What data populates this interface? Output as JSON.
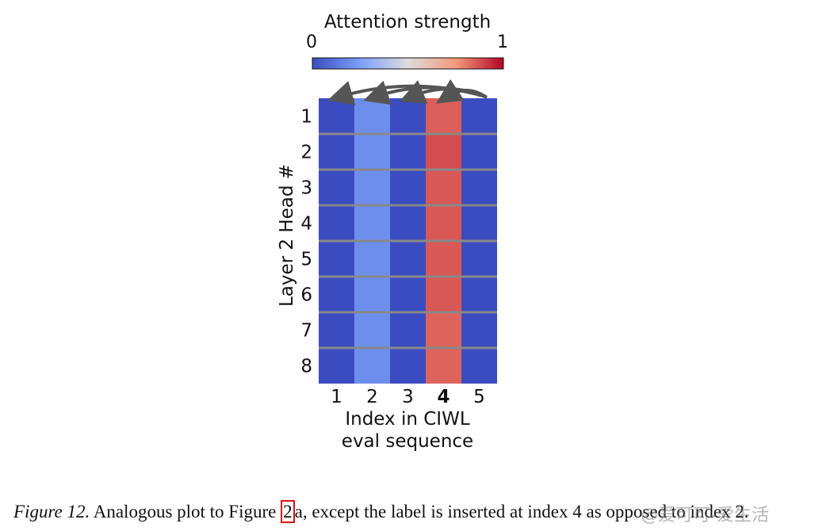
{
  "chart_data": {
    "type": "heatmap",
    "colorbar": {
      "title": "Attention strength",
      "min_label": "0",
      "max_label": "1",
      "range": [
        0,
        1
      ],
      "colormap": "coolwarm"
    },
    "x": {
      "label_line1": "Index in CIWL",
      "label_line2": "eval sequence",
      "ticks": [
        "1",
        "2",
        "3",
        "4",
        "5"
      ],
      "highlight_tick": "4"
    },
    "y": {
      "label": "Layer 2 Head #",
      "ticks": [
        "1",
        "2",
        "3",
        "4",
        "5",
        "6",
        "7",
        "8"
      ]
    },
    "values": [
      [
        0.0,
        0.2,
        0.0,
        0.85,
        0.0
      ],
      [
        0.0,
        0.2,
        0.0,
        0.88,
        0.0
      ],
      [
        0.0,
        0.2,
        0.0,
        0.86,
        0.0
      ],
      [
        0.0,
        0.2,
        0.0,
        0.86,
        0.0
      ],
      [
        0.0,
        0.2,
        0.0,
        0.86,
        0.0
      ],
      [
        0.0,
        0.2,
        0.0,
        0.86,
        0.0
      ],
      [
        0.0,
        0.2,
        0.0,
        0.84,
        0.0
      ],
      [
        0.0,
        0.2,
        0.0,
        0.84,
        0.0
      ]
    ],
    "arrows": {
      "from_index": "5",
      "to_indices": [
        "1",
        "2",
        "3",
        "4"
      ]
    }
  },
  "caption": {
    "figure_label": "Figure 12.",
    "text_before": " Analogous plot to Figure ",
    "boxed": "2",
    "text_after": "a, except the label is inserted at index 4 as opposed to index 2."
  },
  "watermark": "@爱可可-爱生活"
}
